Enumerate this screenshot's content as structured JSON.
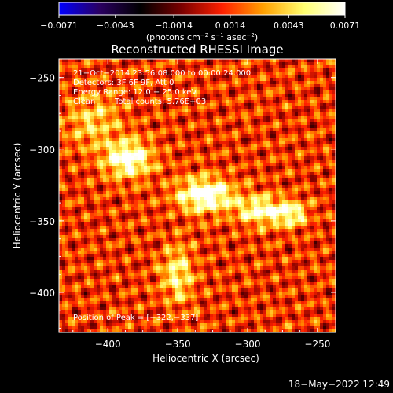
{
  "chart_data": {
    "type": "heatmap",
    "title": "Reconstructed RHESSI Image",
    "xlabel": "Heliocentric X (arcsec)",
    "ylabel": "Heliocentric Y (arcsec)",
    "xlim": [
      -435,
      -237
    ],
    "ylim": [
      -428,
      -237
    ],
    "x_ticks": [
      -400,
      -350,
      -300,
      -250
    ],
    "x_tick_labels": [
      "−400",
      "−350",
      "−300",
      "−250"
    ],
    "y_ticks": [
      -250,
      -300,
      -350,
      -400
    ],
    "y_tick_labels": [
      "−250",
      "−300",
      "−350",
      "−400"
    ],
    "colorbar": {
      "range": [
        -0.0071,
        0.0071
      ],
      "ticks": [
        -0.0071,
        -0.0043,
        -0.0014,
        0.0014,
        0.0043,
        0.0071
      ],
      "tick_labels": [
        "−0.0071",
        "−0.0043",
        "−0.0014",
        "0.0014",
        "0.0043",
        "0.0071"
      ],
      "units_text": "(photons cm",
      "units_exp1": "−2",
      "units_mid": " s",
      "units_exp2": "−1",
      "units_end": " asec",
      "units_exp3": "−2",
      "units_close": ")",
      "colors": [
        "#0000ff",
        "#2a0060",
        "#000000",
        "#7a0000",
        "#ff2000",
        "#ffa000",
        "#ffff70",
        "#ffffff"
      ]
    },
    "annotations": {
      "line1": "21−Oct−2014 23:56:08.000 to 00:00:24.000",
      "line2": "Detectors: 3F 6F 9F, Att 0",
      "line3": "Energy Range: 12.0 − 25.0 keV",
      "line4_a": "Clean",
      "line4_b": "Total counts: 5.76E+03",
      "peak": "Position of Peak = [−322,−337]"
    },
    "peak": [
      -322,
      -337
    ],
    "emission_sources": [
      {
        "x": -330,
        "y": -332,
        "sx": 14,
        "sy": 8,
        "value": 0.0071
      },
      {
        "x": -385,
        "y": -307,
        "sx": 12,
        "sy": 9,
        "value": 0.0062
      },
      {
        "x": -290,
        "y": -343,
        "sx": 12,
        "sy": 7,
        "value": 0.0055
      },
      {
        "x": -350,
        "y": -388,
        "sx": 8,
        "sy": 14,
        "value": 0.0042
      },
      {
        "x": -410,
        "y": -280,
        "sx": 14,
        "sy": 14,
        "value": 0.003
      },
      {
        "x": -268,
        "y": -345,
        "sx": 8,
        "sy": 6,
        "value": 0.0046
      }
    ],
    "background_level": 0.0022
  },
  "footer": {
    "timestamp": "18−May−2022 12:49"
  }
}
